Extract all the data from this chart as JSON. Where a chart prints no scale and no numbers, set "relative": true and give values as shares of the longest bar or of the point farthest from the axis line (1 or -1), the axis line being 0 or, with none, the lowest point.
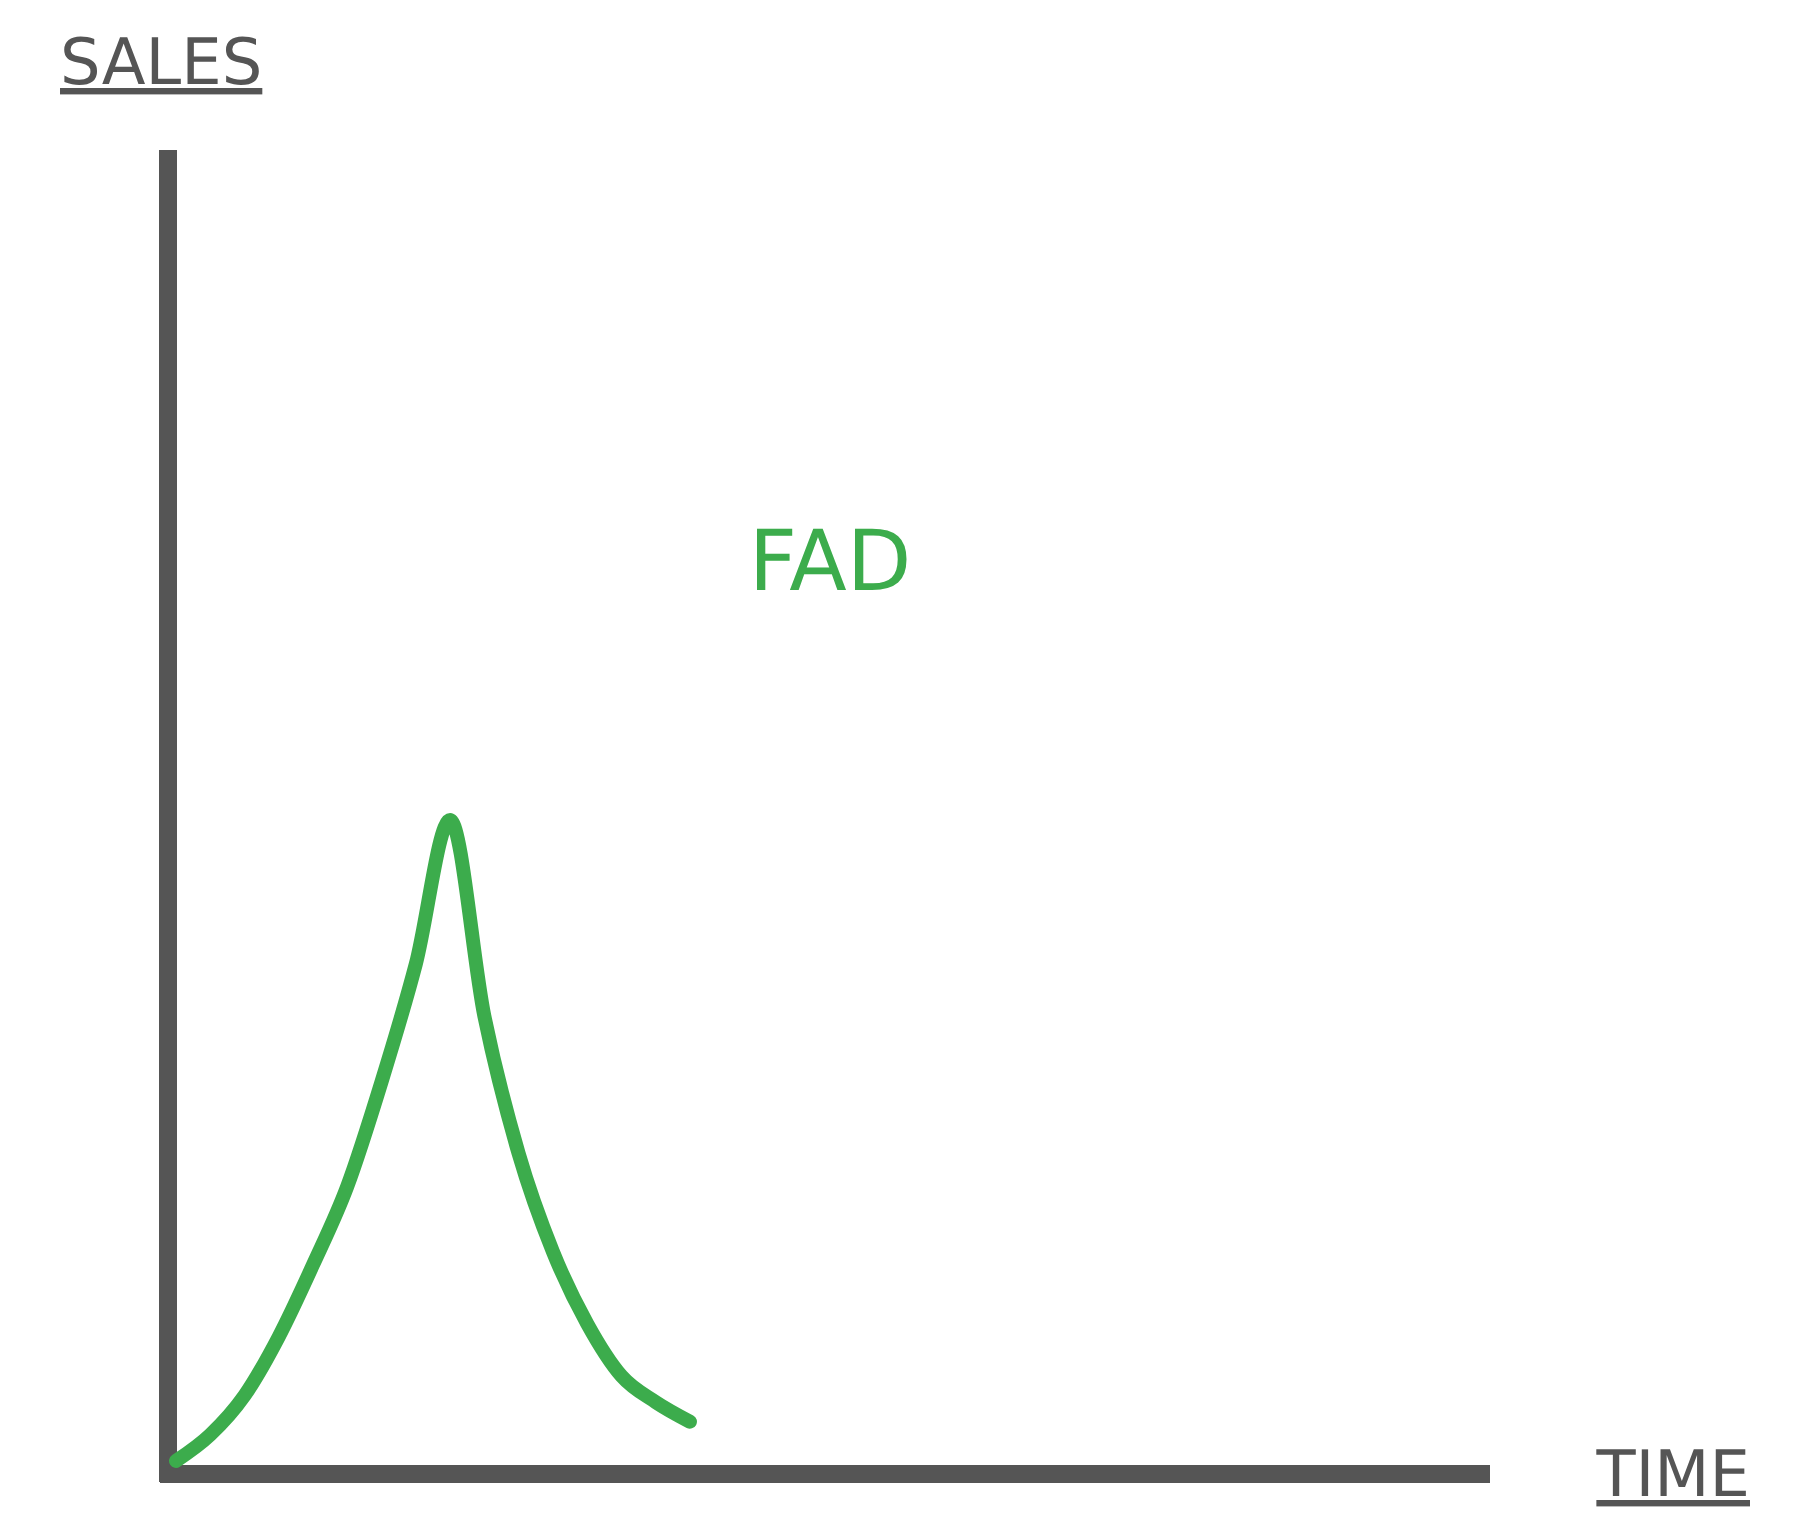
{
  "chart_data": {
    "type": "line",
    "annotations": [
      "SALES"
    ],
    "xlabel": "TIME",
    "relative": true,
    "categories": [
      null,
      null,
      null,
      null,
      null,
      null,
      null,
      null,
      null,
      null,
      null,
      null,
      null,
      null,
      null,
      null,
      null,
      null,
      null,
      null,
      null,
      null,
      null,
      null,
      null,
      null,
      null,
      null,
      null,
      null,
      null,
      null,
      null,
      null,
      null,
      null,
      null,
      null,
      null
    ],
    "series": [
      {
        "name": "FAD",
        "color": "#3cac4c",
        "values": [
          0.02,
          0.06,
          0.12,
          0.21,
          0.32,
          0.44,
          0.6,
          0.78,
          1,
          0.7,
          0.49,
          0.34,
          0.23,
          0.15,
          0.11,
          0.08,
          null,
          null,
          null,
          null,
          null,
          null,
          null,
          null,
          null,
          null,
          null,
          null,
          null,
          null,
          null,
          null,
          null,
          null,
          null,
          null,
          null,
          null,
          null
        ]
      }
    ]
  }
}
